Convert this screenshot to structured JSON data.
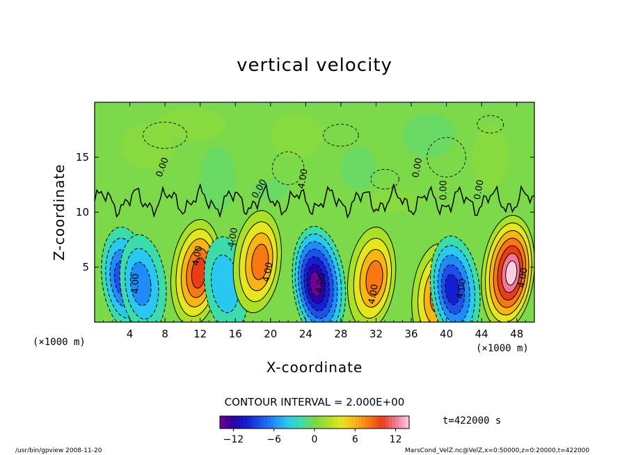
{
  "chart_data": {
    "type": "heatmap",
    "title": "vertical velocity",
    "xlabel": "X-coordinate",
    "ylabel": "Z-coordinate",
    "x_unit_label": "(×1000 m)",
    "y_unit_label": "(×1000 m)",
    "xlim": [
      0,
      50
    ],
    "ylim": [
      0,
      20
    ],
    "x_ticks": [
      "4",
      "8",
      "12",
      "16",
      "20",
      "24",
      "28",
      "32",
      "36",
      "40",
      "44",
      "48"
    ],
    "y_ticks": [
      "5",
      "10",
      "15"
    ],
    "contour_interval_text": "CONTOUR INTERVAL = 2.000E+00",
    "contour_labels": [
      "0.00",
      "4.00",
      "-4.00"
    ],
    "colorbar": {
      "min": -14,
      "max": 14,
      "ticks": [
        "-12",
        "-6",
        "0",
        "6",
        "12"
      ]
    },
    "time_label": "t=422000 s",
    "cells": [
      {
        "x": 3.5,
        "z": 4.0,
        "w": -8
      },
      {
        "x": 5.5,
        "z": 3.5,
        "w": -6
      },
      {
        "x": 11.5,
        "z": 4.5,
        "w": 10
      },
      {
        "x": 15.0,
        "z": 3.5,
        "w": -4
      },
      {
        "x": 18.5,
        "z": 5.5,
        "w": 8
      },
      {
        "x": 25.5,
        "z": 3.5,
        "w": -14
      },
      {
        "x": 31.5,
        "z": 4.0,
        "w": 8
      },
      {
        "x": 38.8,
        "z": 2.5,
        "w": 8
      },
      {
        "x": 41.0,
        "z": 3.0,
        "w": -10
      },
      {
        "x": 47.0,
        "z": 4.5,
        "w": 14
      }
    ]
  },
  "footer": {
    "left": "/usr/bin/gpview   2008-11-20",
    "right": "MarsCond_VelZ.nc@VelZ,x=0:50000,z=0:20000,t=422000"
  }
}
